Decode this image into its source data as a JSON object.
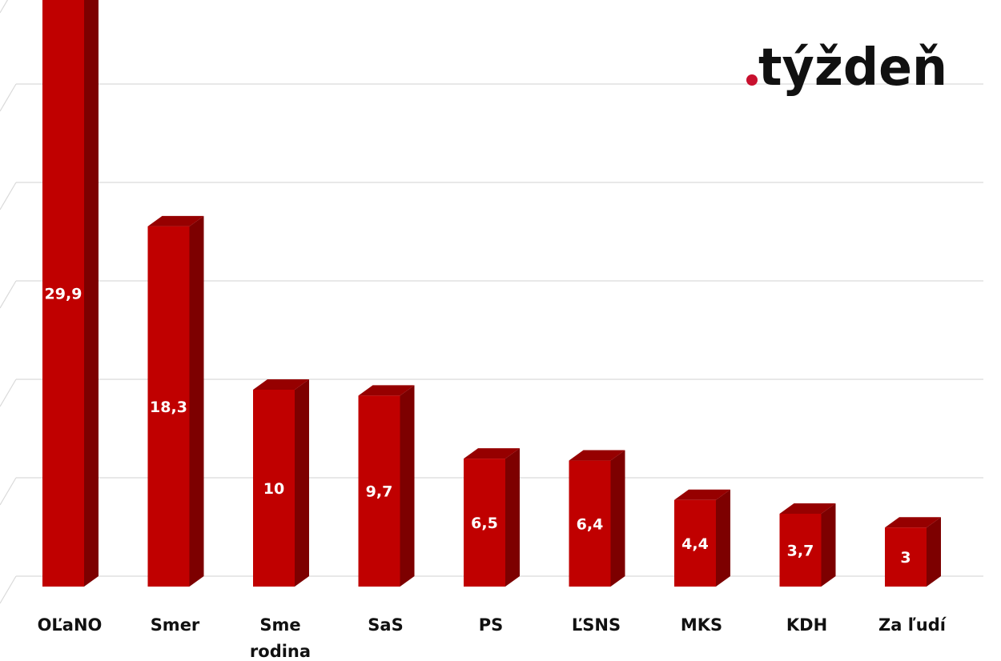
{
  "logo": {
    "text": "týždeň",
    "dot_color": "#c8102e",
    "text_color": "#111111"
  },
  "colors": {
    "bar_front": "#c00000",
    "bar_side": "#7d0000",
    "bar_top": "#960000",
    "grid": "#d9d9d9"
  },
  "chart_data": {
    "type": "bar",
    "style": "3d-column",
    "categories": [
      "OĽaNO",
      "Smer",
      "Sme rodina",
      "SaS",
      "PS",
      "ĽSNS",
      "MKS",
      "KDH",
      "Za ľudí"
    ],
    "values": [
      29.9,
      18.3,
      10,
      9.7,
      6.5,
      6.4,
      4.4,
      3.7,
      3
    ],
    "value_labels": [
      "29,9",
      "18,3",
      "10",
      "9,7",
      "6,5",
      "6,4",
      "4,4",
      "3,7",
      "3"
    ],
    "category_label_lines": [
      [
        "OĽaNO"
      ],
      [
        "Smer"
      ],
      [
        "Sme",
        "rodina"
      ],
      [
        "SaS"
      ],
      [
        "PS"
      ],
      [
        "ĽSNS"
      ],
      [
        "MKS"
      ],
      [
        "KDH"
      ],
      [
        "Za ľudí"
      ]
    ],
    "title": "",
    "xlabel": "",
    "ylabel": "",
    "ylim": [
      0,
      35
    ],
    "gridlines": [
      5,
      10,
      15,
      20,
      25,
      30
    ],
    "grid": true,
    "legend": "none"
  }
}
